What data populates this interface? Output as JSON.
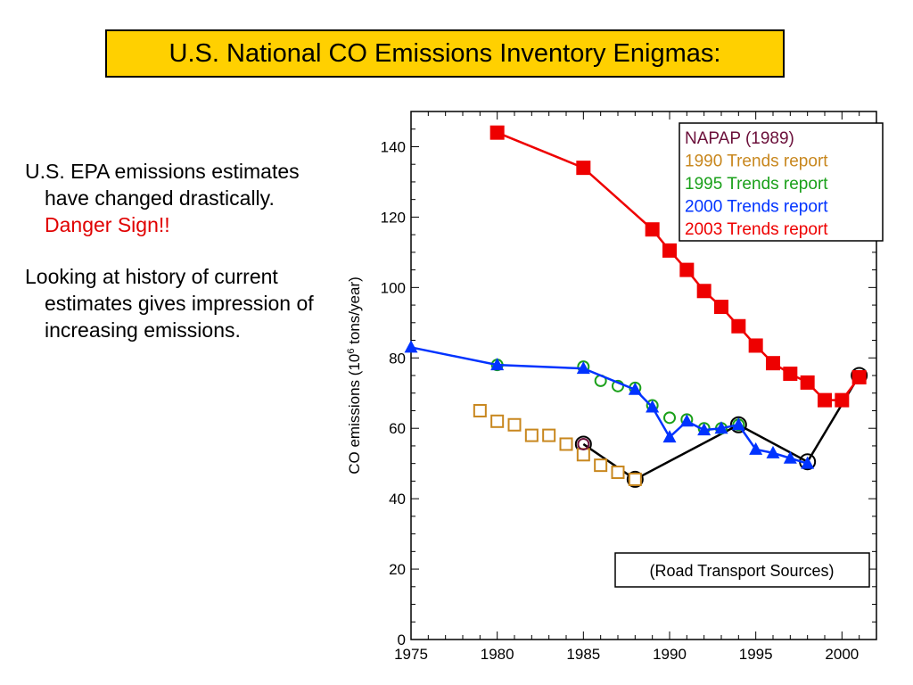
{
  "slide": {
    "title": "U.S. National CO Emissions Inventory Enigmas:",
    "bullets": [
      {
        "text": "U.S. EPA emissions estimates have changed drastically.",
        "warning": "Danger Sign!!"
      },
      {
        "text": "Looking at history of current estimates gives impression of increasing emissions."
      }
    ]
  },
  "chart_data": {
    "type": "line",
    "title": "",
    "xlabel": "",
    "ylabel": "CO emissions (10",
    "ylabel_superscript": "6",
    "ylabel_suffix": " tons/year)",
    "xlim": [
      1975,
      2002
    ],
    "ylim": [
      0,
      150
    ],
    "xticks": [
      1975,
      1980,
      1985,
      1990,
      1995,
      2000
    ],
    "yticks": [
      0,
      20,
      40,
      60,
      80,
      100,
      120,
      140
    ],
    "legend_placement": "top-right",
    "annotation": "(Road Transport Sources)",
    "series": [
      {
        "name": "NAPAP  (1989)",
        "color": "#6b0f3a",
        "marker": "open-circle",
        "line": false,
        "points": [
          [
            1985,
            55.5
          ]
        ]
      },
      {
        "name": "1990 Trends report",
        "color": "#c8871e",
        "marker": "open-square",
        "line": false,
        "points": [
          [
            1979,
            65
          ],
          [
            1980,
            62
          ],
          [
            1981,
            61
          ],
          [
            1982,
            58
          ],
          [
            1983,
            58
          ],
          [
            1984,
            55.5
          ],
          [
            1985,
            52.5
          ],
          [
            1986,
            49.5
          ],
          [
            1987,
            47.5
          ],
          [
            1988,
            45.5
          ]
        ]
      },
      {
        "name": "1995 Trends report",
        "color": "#1aa01a",
        "marker": "open-circle",
        "line": false,
        "points": [
          [
            1980,
            78
          ],
          [
            1985,
            77.5
          ],
          [
            1986,
            73.5
          ],
          [
            1987,
            72
          ],
          [
            1988,
            71.5
          ],
          [
            1989,
            66.5
          ],
          [
            1990,
            63
          ],
          [
            1991,
            62.5
          ],
          [
            1992,
            60
          ],
          [
            1993,
            60
          ],
          [
            1994,
            61
          ]
        ]
      },
      {
        "name": "2000 Trends report",
        "color": "#0033ff",
        "marker": "filled-triangle",
        "line": true,
        "points": [
          [
            1975,
            83
          ],
          [
            1980,
            78
          ],
          [
            1985,
            77
          ],
          [
            1988,
            71
          ],
          [
            1989,
            66
          ],
          [
            1990,
            57.5
          ],
          [
            1991,
            62
          ],
          [
            1992,
            59.5
          ],
          [
            1993,
            60
          ],
          [
            1994,
            61
          ],
          [
            1995,
            54
          ],
          [
            1996,
            53
          ],
          [
            1997,
            51.5
          ],
          [
            1998,
            50
          ]
        ]
      },
      {
        "name": "2003 Trends report",
        "color": "#ee0000",
        "marker": "filled-square",
        "line": true,
        "points": [
          [
            1980,
            144
          ],
          [
            1985,
            134
          ],
          [
            1989,
            116.5
          ],
          [
            1990,
            110.5
          ],
          [
            1991,
            105
          ],
          [
            1992,
            99
          ],
          [
            1993,
            94.5
          ],
          [
            1994,
            89
          ],
          [
            1995,
            83.5
          ],
          [
            1996,
            78.5
          ],
          [
            1997,
            75.5
          ],
          [
            1998,
            73
          ],
          [
            1999,
            68
          ],
          [
            2000,
            68
          ],
          [
            2001,
            74.5
          ]
        ]
      },
      {
        "name": "",
        "color": "#000000",
        "marker": "open-circle-black",
        "line": true,
        "in_legend": false,
        "points": [
          [
            1985,
            55.5
          ],
          [
            1988,
            45.5
          ],
          [
            1994,
            61
          ],
          [
            1998,
            50.5
          ],
          [
            2001,
            75
          ]
        ]
      }
    ]
  }
}
